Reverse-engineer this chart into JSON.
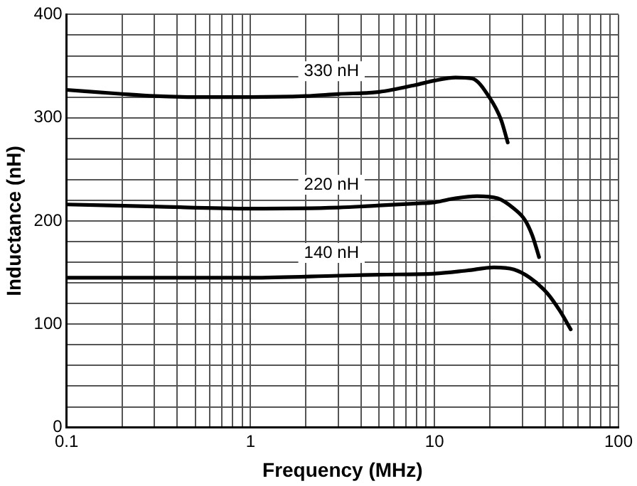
{
  "chart_data": {
    "type": "line",
    "xlabel": "Frequency (MHz)",
    "ylabel": "Inductance (nH)",
    "log": "x",
    "grid": true,
    "legend": false,
    "marker": "none",
    "line_style": "solid",
    "xlim": [
      0.1,
      100
    ],
    "ylim": [
      0,
      400
    ],
    "xticks": [
      0.1,
      {
        "value": 0.2,
        "label": null
      },
      {
        "value": 0.3,
        "label": null
      },
      {
        "value": 0.4,
        "label": null
      },
      {
        "value": 0.5,
        "label": null
      },
      {
        "value": 0.6,
        "label": null
      },
      {
        "value": 0.7,
        "label": null
      },
      {
        "value": 0.8,
        "label": null
      },
      {
        "value": 0.9,
        "label": null
      },
      1,
      {
        "value": 2,
        "label": null
      },
      {
        "value": 3,
        "label": null
      },
      {
        "value": 4,
        "label": null
      },
      {
        "value": 5,
        "label": null
      },
      {
        "value": 6,
        "label": null
      },
      {
        "value": 7,
        "label": null
      },
      {
        "value": 8,
        "label": null
      },
      {
        "value": 9,
        "label": null
      },
      10,
      {
        "value": 20,
        "label": null
      },
      {
        "value": 30,
        "label": null
      },
      {
        "value": 40,
        "label": null
      },
      {
        "value": 50,
        "label": null
      },
      {
        "value": 60,
        "label": null
      },
      {
        "value": 70,
        "label": null
      },
      {
        "value": 80,
        "label": null
      },
      {
        "value": 90,
        "label": null
      },
      100
    ],
    "yticks": [
      0,
      {
        "value": 20,
        "label": null
      },
      {
        "value": 40,
        "label": null
      },
      {
        "value": 60,
        "label": null
      },
      {
        "value": 80,
        "label": null
      },
      100,
      {
        "value": 120,
        "label": null
      },
      {
        "value": 140,
        "label": null
      },
      {
        "value": 160,
        "label": null
      },
      {
        "value": 180,
        "label": null
      },
      200,
      {
        "value": 220,
        "label": null
      },
      {
        "value": 240,
        "label": null
      },
      {
        "value": 260,
        "label": null
      },
      {
        "value": 280,
        "label": null
      },
      300,
      {
        "value": 320,
        "label": null
      },
      {
        "value": 340,
        "label": null
      },
      {
        "value": 360,
        "label": null
      },
      {
        "value": 380,
        "label": null
      },
      400
    ],
    "series": [
      {
        "name": "330 nH",
        "color": "#000000",
        "x": [
          0.1,
          0.2,
          0.3,
          0.5,
          1,
          2,
          3,
          5,
          8,
          10,
          13,
          16,
          20,
          23,
          25
        ],
        "values": [
          327,
          323,
          321,
          320,
          320,
          321,
          323,
          325,
          332,
          336,
          339,
          338,
          319,
          298,
          276
        ]
      },
      {
        "name": "220 nH",
        "color": "#000000",
        "x": [
          0.1,
          0.3,
          1,
          3,
          5,
          8,
          10,
          13,
          17,
          22,
          27,
          31,
          34,
          37
        ],
        "values": [
          216,
          214,
          212,
          213,
          215,
          217,
          218,
          222,
          224,
          222,
          212,
          201,
          186,
          165
        ]
      },
      {
        "name": "140 nH",
        "color": "#000000",
        "x": [
          0.1,
          0.3,
          1,
          3,
          5,
          10,
          15,
          21,
          27,
          33,
          41,
          48,
          55
        ],
        "values": [
          145,
          145,
          145,
          147,
          148,
          149,
          152,
          155,
          153,
          145,
          130,
          113,
          95
        ]
      }
    ]
  }
}
